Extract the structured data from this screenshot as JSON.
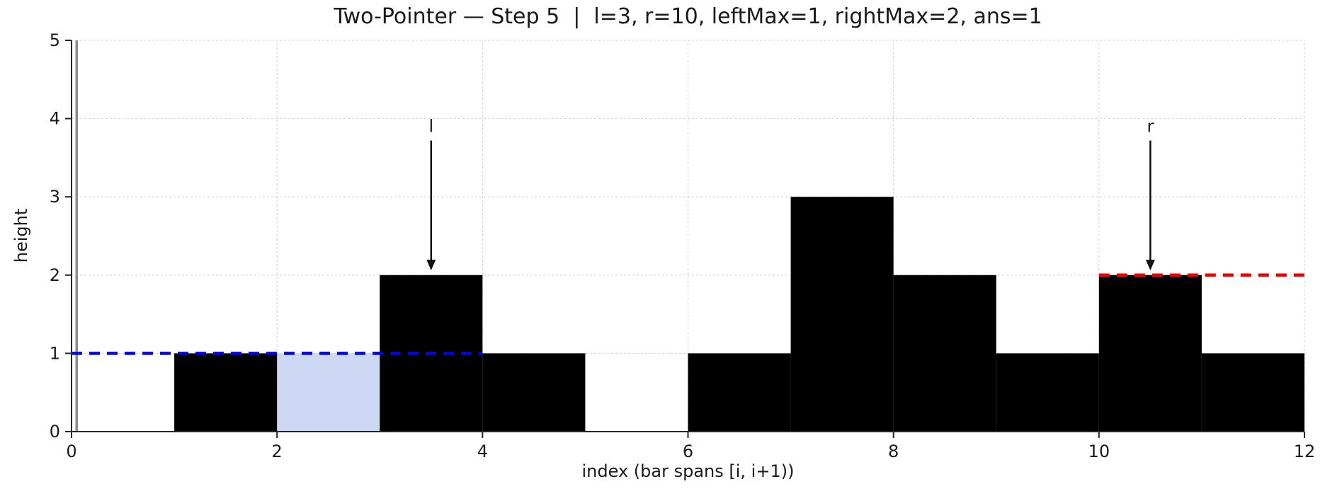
{
  "figure": {
    "title": "Two-Pointer — Step 5  |  l=3, r=10, leftMax=1, rightMax=2, ans=1"
  },
  "chart_data": {
    "type": "bar",
    "title": "Two-Pointer — Step 5  |  l=3, r=10, leftMax=1, rightMax=2, ans=1",
    "xlabel": "index (bar spans [i, i+1))",
    "ylabel": "height",
    "xlim": [
      0,
      12
    ],
    "ylim": [
      0,
      5
    ],
    "xticks": [
      0,
      2,
      4,
      6,
      8,
      10,
      12
    ],
    "yticks": [
      0,
      1,
      2,
      3,
      4,
      5
    ],
    "grid": true,
    "bar_width": 1,
    "categories": [
      0,
      1,
      2,
      3,
      4,
      5,
      6,
      7,
      8,
      9,
      10,
      11
    ],
    "values": [
      0,
      1,
      0,
      2,
      1,
      0,
      1,
      3,
      2,
      1,
      2,
      1
    ],
    "bar_color": "#000000",
    "water_fills": [
      {
        "index": 2,
        "y0": 0,
        "y1": 1
      }
    ],
    "water_color": "#ccd8f4",
    "reference_lines": [
      {
        "name": "leftmax",
        "y": 1,
        "x0": 0,
        "x1": 4,
        "color": "#0000ff",
        "style": "dashed"
      },
      {
        "name": "rightmax",
        "y": 2,
        "x0": 10,
        "x1": 12,
        "color": "#ee0000",
        "style": "dashed"
      }
    ],
    "marker_vline": {
      "x": 0.05,
      "color": "#8c8c8c"
    },
    "pointers": [
      {
        "label": "l",
        "x": 3.5,
        "tip_y": 2.06,
        "top_y": 3.72,
        "label_y": 3.9
      },
      {
        "label": "r",
        "x": 10.5,
        "tip_y": 2.06,
        "top_y": 3.72,
        "label_y": 3.9
      }
    ],
    "state": {
      "step": 5,
      "l": 3,
      "r": 10,
      "leftMax": 1,
      "rightMax": 2,
      "ans": 1
    }
  }
}
